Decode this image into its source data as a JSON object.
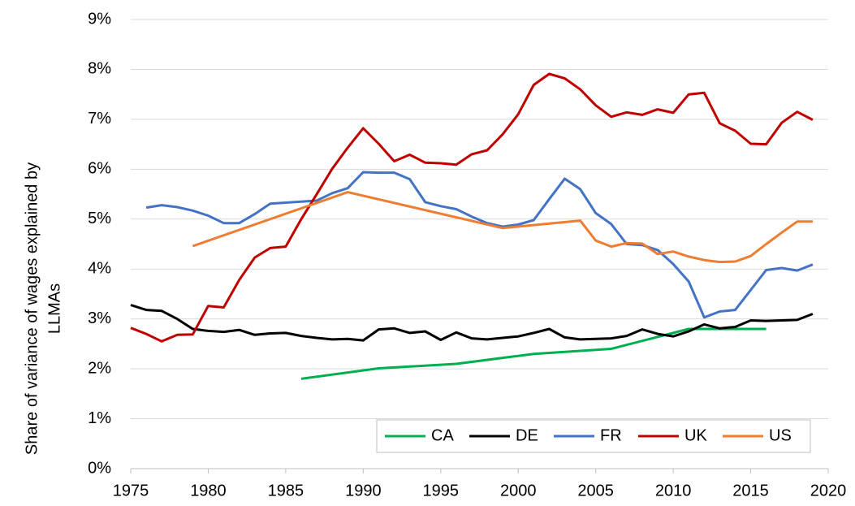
{
  "chart_data": {
    "type": "line",
    "ylabel": [
      "Share of variance of wages explained by",
      "LLMAs"
    ],
    "xlim": [
      1975,
      2020
    ],
    "xticks": [
      1975,
      1980,
      1985,
      1990,
      1995,
      2000,
      2005,
      2010,
      2015,
      2020
    ],
    "ylim": [
      0,
      9
    ],
    "yticks": [
      {
        "value": 0,
        "label": "0%"
      },
      {
        "value": 1,
        "label": "1%"
      },
      {
        "value": 2,
        "label": "2%"
      },
      {
        "value": 3,
        "label": "3%"
      },
      {
        "value": 4,
        "label": "4%"
      },
      {
        "value": 5,
        "label": "5%"
      },
      {
        "value": 6,
        "label": "6%"
      },
      {
        "value": 7,
        "label": "7%"
      },
      {
        "value": 8,
        "label": "8%"
      },
      {
        "value": 9,
        "label": "9%"
      }
    ],
    "grid": true,
    "legend": "bottom-right",
    "series": [
      {
        "name": "CA",
        "color": "#00b050",
        "x": [
          1986,
          1991,
          1996,
          2001,
          2006,
          2011,
          2016
        ],
        "values": [
          1.8,
          2.01,
          2.1,
          2.3,
          2.4,
          2.8,
          2.8
        ]
      },
      {
        "name": "DE",
        "color": "#000000",
        "x": [
          1975,
          1976,
          1977,
          1978,
          1979,
          1980,
          1981,
          1982,
          1983,
          1984,
          1985,
          1986,
          1987,
          1988,
          1989,
          1990,
          1991,
          1992,
          1993,
          1994,
          1995,
          1996,
          1997,
          1998,
          1999,
          2000,
          2001,
          2002,
          2003,
          2004,
          2005,
          2006,
          2007,
          2008,
          2009,
          2010,
          2011,
          2012,
          2013,
          2014,
          2015,
          2016,
          2017,
          2018,
          2019
        ],
        "values": [
          3.28,
          3.18,
          3.16,
          3.0,
          2.8,
          2.76,
          2.74,
          2.78,
          2.68,
          2.71,
          2.72,
          2.66,
          2.62,
          2.59,
          2.6,
          2.57,
          2.79,
          2.81,
          2.72,
          2.75,
          2.58,
          2.73,
          2.61,
          2.59,
          2.62,
          2.65,
          2.72,
          2.8,
          2.63,
          2.59,
          2.6,
          2.61,
          2.66,
          2.79,
          2.7,
          2.65,
          2.75,
          2.89,
          2.81,
          2.84,
          2.97,
          2.96,
          2.97,
          2.98,
          3.1
        ]
      },
      {
        "name": "FR",
        "color": "#4472c4",
        "x": [
          1976,
          1977,
          1978,
          1979,
          1980,
          1981,
          1982,
          1983,
          1984,
          1985,
          1986,
          1987,
          1988,
          1989,
          1990,
          1991,
          1992,
          1993,
          1994,
          1995,
          1996,
          1997,
          1998,
          1999,
          2000,
          2001,
          2002,
          2003,
          2004,
          2005,
          2006,
          2007,
          2008,
          2009,
          2010,
          2011,
          2012,
          2013,
          2014,
          2015,
          2016,
          2017,
          2018,
          2019
        ],
        "values": [
          5.23,
          5.28,
          5.24,
          5.17,
          5.07,
          4.92,
          4.92,
          5.1,
          5.31,
          5.33,
          5.35,
          5.37,
          5.52,
          5.62,
          5.94,
          5.93,
          5.93,
          5.8,
          5.34,
          5.26,
          5.2,
          5.05,
          4.92,
          4.85,
          4.89,
          4.98,
          5.4,
          5.81,
          5.6,
          5.12,
          4.9,
          4.5,
          4.48,
          4.38,
          4.1,
          3.75,
          3.03,
          3.15,
          3.18,
          3.58,
          3.98,
          4.02,
          3.97,
          4.09
        ]
      },
      {
        "name": "UK",
        "color": "#c00000",
        "x": [
          1975,
          1976,
          1977,
          1978,
          1979,
          1980,
          1981,
          1982,
          1983,
          1984,
          1985,
          1986,
          1987,
          1988,
          1989,
          1990,
          1991,
          1992,
          1993,
          1994,
          1995,
          1996,
          1997,
          1998,
          1999,
          2000,
          2001,
          2002,
          2003,
          2004,
          2005,
          2006,
          2007,
          2008,
          2009,
          2010,
          2011,
          2012,
          2013,
          2014,
          2015,
          2016,
          2017,
          2018,
          2019
        ],
        "values": [
          2.82,
          2.7,
          2.55,
          2.68,
          2.69,
          3.26,
          3.23,
          3.78,
          4.23,
          4.42,
          4.45,
          5.0,
          5.5,
          6.01,
          6.43,
          6.82,
          6.51,
          6.16,
          6.29,
          6.13,
          6.12,
          6.09,
          6.3,
          6.38,
          6.7,
          7.1,
          7.69,
          7.91,
          7.82,
          7.6,
          7.28,
          7.05,
          7.14,
          7.09,
          7.2,
          7.13,
          7.5,
          7.53,
          6.92,
          6.77,
          6.51,
          6.5,
          6.93,
          7.15,
          6.99
        ]
      },
      {
        "name": "US",
        "color": "#ed7d31",
        "x": [
          1979,
          1989,
          1999,
          2004,
          2005,
          2006,
          2007,
          2008,
          2009,
          2010,
          2011,
          2012,
          2013,
          2014,
          2015,
          2016,
          2017,
          2018,
          2019
        ],
        "values": [
          4.46,
          5.54,
          4.82,
          4.97,
          4.57,
          4.45,
          4.52,
          4.51,
          4.3,
          4.35,
          4.25,
          4.18,
          4.14,
          4.15,
          4.26,
          4.5,
          4.73,
          4.95,
          4.95
        ]
      }
    ]
  }
}
